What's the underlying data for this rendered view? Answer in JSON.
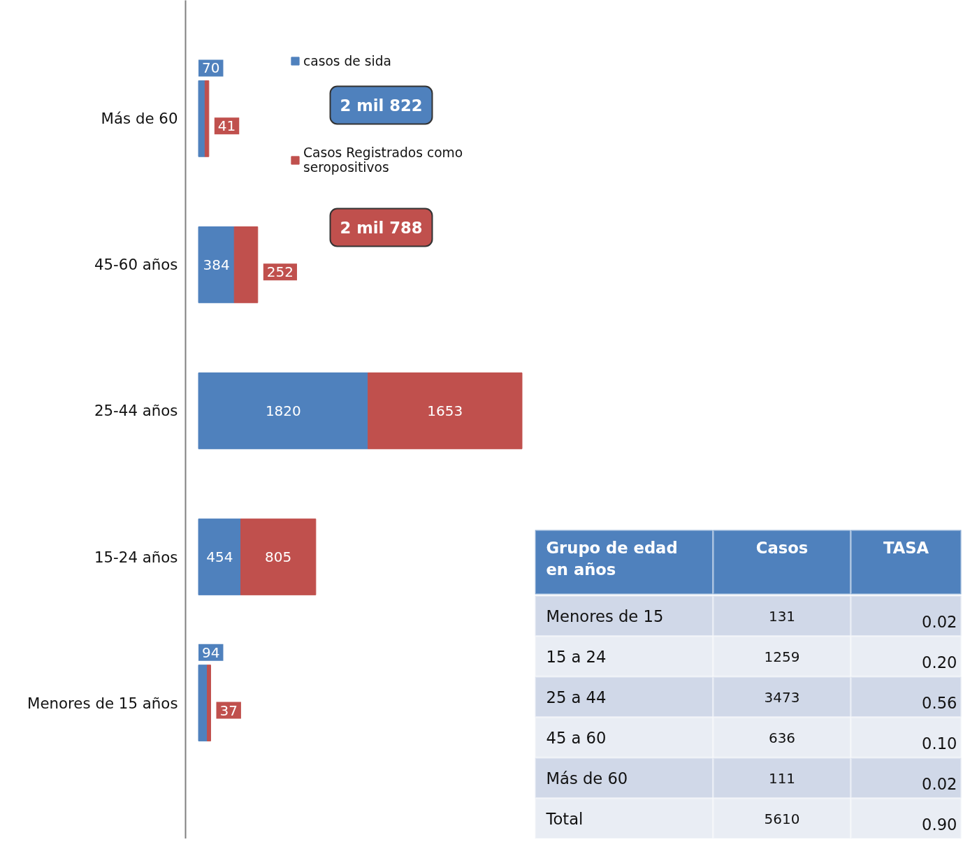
{
  "chart_data": [
    {
      "type": "bar",
      "orientation": "horizontal",
      "stacked": true,
      "categories": [
        "Más de 60",
        "45-60 años",
        "25-44 años",
        "15-24 años",
        "Menores de 15 años"
      ],
      "series": [
        {
          "name": "casos de sida",
          "color": "#4f81bd",
          "values": [
            70,
            384,
            1820,
            454,
            94
          ]
        },
        {
          "name": "Casos Registrados como seropositivos",
          "color": "#c0504d",
          "values": [
            41,
            252,
            1653,
            805,
            37
          ]
        }
      ],
      "data_labels": true,
      "legend": "top right",
      "tick_labels": "y",
      "grid": false,
      "annotations": [
        "2 mil 822",
        "2 mil 788"
      ]
    },
    {
      "type": "other",
      "categories": [
        "Grupo de edad en años",
        "Casos",
        "TASA"
      ],
      "y_categories": [
        "Menores de 15",
        "15 a 24",
        "25 a 44",
        "45 a 60",
        "Más de 60",
        "Total"
      ],
      "cell_labels": [
        [
          "131",
          "0.02"
        ],
        [
          "1259",
          "0.20"
        ],
        [
          "3473",
          "0.56"
        ],
        [
          "636",
          "0.10"
        ],
        [
          "111",
          "0.02"
        ],
        [
          "5610",
          "0.90"
        ]
      ]
    }
  ]
}
